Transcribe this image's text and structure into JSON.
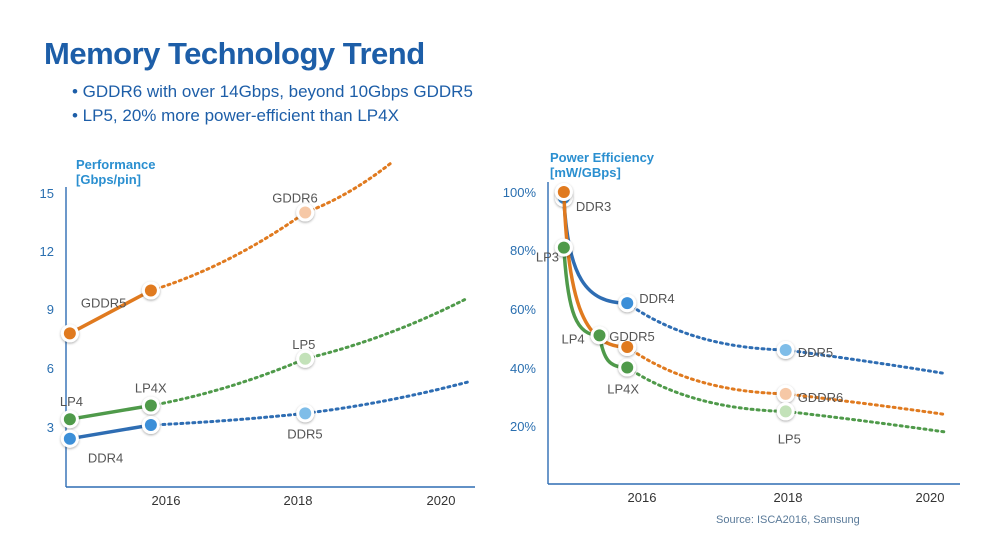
{
  "header": {
    "title": "Memory Technology Trend",
    "bullets": [
      "• GDDR6 with over 14Gbps, beyond 10Gbps GDDR5",
      "• LP5, 20% more power-efficient than LP4X"
    ]
  },
  "source": "Source: ISCA2016, Samsung",
  "colors": {
    "orange": "#e07a1f",
    "green": "#4f9a4a",
    "blue": "#2e6db3",
    "light_blue": "#7fbde8",
    "light_orange": "#f6c8a6",
    "light_green": "#c3e2b9"
  },
  "chart_data": [
    {
      "type": "line",
      "ylabel_lines": [
        "Performance",
        "[Gbps/pin]"
      ],
      "xlim": [
        2014.8,
        2020.1
      ],
      "ylim": [
        0,
        15.5
      ],
      "xticks": [
        "2016",
        "2018",
        "2020"
      ],
      "yticks": [
        "3",
        "6",
        "9",
        "12",
        "15"
      ],
      "grid": false,
      "series": [
        {
          "color": "#e07a1f",
          "x": [
            2014.85,
            2015.9,
            2017.9
          ],
          "y": [
            7.8,
            10.0,
            14.0
          ],
          "labels": [
            "",
            "GDDR5",
            "GDDR6"
          ],
          "solid_to": 2015.9,
          "projection": [
            [
              2017.9,
              14.0
            ],
            [
              2019.0,
              16.5
            ]
          ]
        },
        {
          "color": "#4f9a4a",
          "x": [
            2014.85,
            2015.9,
            2017.9
          ],
          "y": [
            3.4,
            4.1,
            6.5
          ],
          "labels": [
            "LP4",
            "LP4X",
            "LP5"
          ],
          "solid_to": 2015.9,
          "projection": [
            [
              2017.9,
              6.5
            ],
            [
              2020.0,
              9.6
            ]
          ]
        },
        {
          "color": "#2e6db3",
          "x": [
            2014.85,
            2015.9,
            2017.9
          ],
          "y": [
            2.4,
            3.1,
            3.7
          ],
          "labels": [
            "DDR4",
            "",
            "DDR5"
          ],
          "solid_to": 2015.9,
          "projection": [
            [
              2017.9,
              3.7
            ],
            [
              2020.0,
              5.3
            ]
          ]
        }
      ]
    },
    {
      "type": "line",
      "ylabel_lines": [
        "Power Efficiency",
        "[mW/GBps]"
      ],
      "xlim": [
        2015.0,
        2020.2
      ],
      "ylim": [
        0,
        106
      ],
      "xticks": [
        "2016",
        "2018",
        "2020"
      ],
      "yticks": [
        "20%",
        "40%",
        "60%",
        "80%",
        "100%"
      ],
      "grid": false,
      "series": [
        {
          "color": "#2e6db3",
          "x": [
            2015.2,
            2016.0,
            2018.0
          ],
          "y": [
            98,
            62,
            46
          ],
          "labels": [
            "DDR3",
            "DDR4",
            "DDR5"
          ],
          "projection_end": [
            2020.0,
            38
          ]
        },
        {
          "color": "#e07a1f",
          "x": [
            2015.2,
            2016.0,
            2018.0
          ],
          "y": [
            100,
            47,
            31
          ],
          "labels": [
            "",
            "GDDR5",
            "GDDR6"
          ],
          "projection_end": [
            2020.0,
            24
          ]
        },
        {
          "color": "#4f9a4a",
          "x": [
            2015.2,
            2015.65,
            2016.0,
            2018.0
          ],
          "y": [
            81,
            51,
            40,
            25
          ],
          "labels": [
            "LP3",
            "LP4",
            "LP4X",
            "LP5"
          ],
          "projection_end": [
            2020.0,
            18
          ]
        }
      ]
    }
  ]
}
